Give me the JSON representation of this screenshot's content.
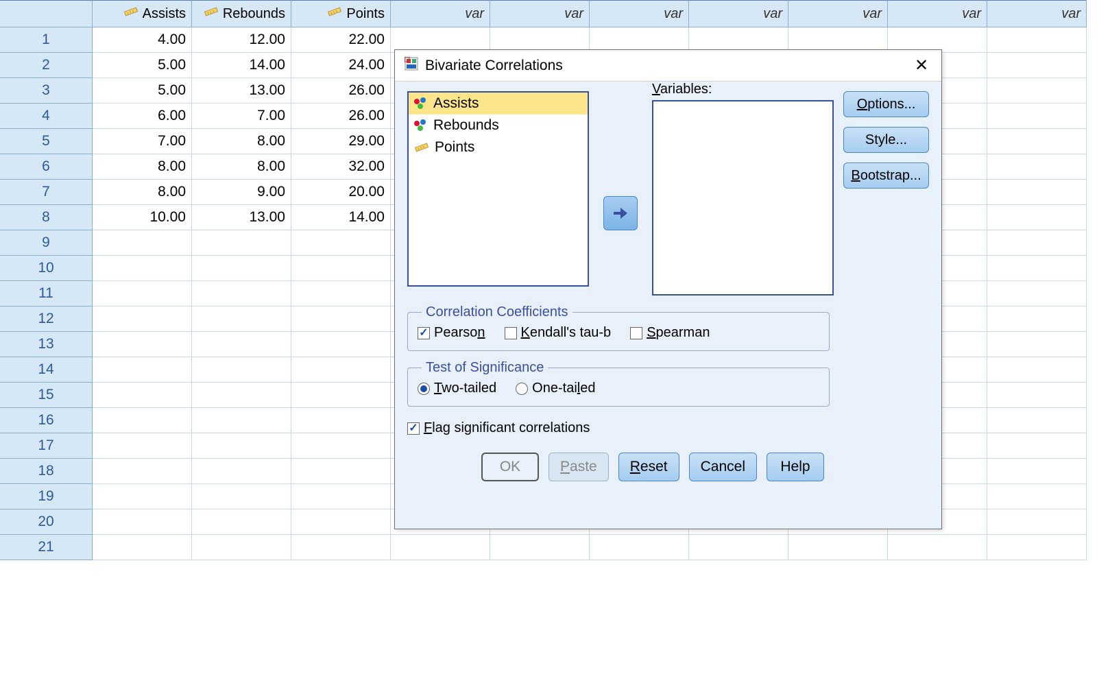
{
  "colors": {
    "header_bg": "#d6e7f5",
    "header_border": "#8aaed0",
    "cell_border": "#c7d8e8",
    "row_num_color": "#2b5a9e",
    "dialog_bg": "#e8f0f9",
    "accent_border": "#3a4fa0",
    "button_start": "#c9e1f7",
    "button_end": "#a4cdf0",
    "button_border": "#4a85c4"
  },
  "spreadsheet": {
    "named_columns": [
      "Assists",
      "Rebounds",
      "Points"
    ],
    "var_placeholder": "var",
    "extra_var_columns": 7,
    "rows": [
      [
        "4.00",
        "12.00",
        "22.00"
      ],
      [
        "5.00",
        "14.00",
        "24.00"
      ],
      [
        "5.00",
        "13.00",
        "26.00"
      ],
      [
        "6.00",
        "7.00",
        "26.00"
      ],
      [
        "7.00",
        "8.00",
        "29.00"
      ],
      [
        "8.00",
        "8.00",
        "32.00"
      ],
      [
        "8.00",
        "9.00",
        "20.00"
      ],
      [
        "10.00",
        "13.00",
        "14.00"
      ]
    ],
    "total_visible_rows": 21
  },
  "dialog": {
    "title": "Bivariate Correlations",
    "source_variables": [
      {
        "label": "Assists",
        "type": "nominal",
        "selected": true
      },
      {
        "label": "Rebounds",
        "type": "nominal",
        "selected": false
      },
      {
        "label": "Points",
        "type": "scale",
        "selected": false
      }
    ],
    "target_label": "Variables:",
    "target_underline": "V",
    "side_buttons": [
      {
        "label": "Options...",
        "underline": "O"
      },
      {
        "label": "Style...",
        "underline": "L"
      },
      {
        "label": "Bootstrap...",
        "underline": "B"
      }
    ],
    "fieldset1": {
      "legend": "Correlation Coefficients",
      "options": [
        {
          "label": "Pearson",
          "underline": "n",
          "checked": true
        },
        {
          "label": "Kendall's tau-b",
          "underline": "K",
          "checked": false
        },
        {
          "label": "Spearman",
          "underline": "S",
          "checked": false
        }
      ]
    },
    "fieldset2": {
      "legend": "Test of Significance",
      "options": [
        {
          "label": "Two-tailed",
          "underline": "T",
          "checked": true
        },
        {
          "label": "One-tailed",
          "underline": "l",
          "checked": false
        }
      ]
    },
    "flag": {
      "label": "Flag significant correlations",
      "underline": "F",
      "checked": true
    },
    "buttons": [
      {
        "label": "OK",
        "class": "outlined disabled"
      },
      {
        "label": "Paste",
        "underline": "P",
        "class": "disabled"
      },
      {
        "label": "Reset",
        "underline": "R",
        "class": ""
      },
      {
        "label": "Cancel",
        "class": ""
      },
      {
        "label": "Help",
        "class": ""
      }
    ]
  }
}
